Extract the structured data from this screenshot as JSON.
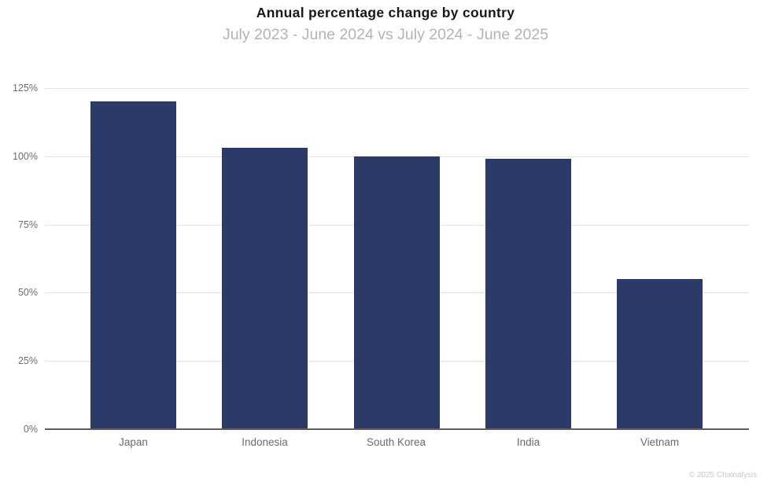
{
  "footer": "© 2025 Chainalysis",
  "colors": {
    "bar": "#2b3a67",
    "gridline": "#e4e4e4",
    "baseline": "#5f5f5f",
    "title_text": "#181818",
    "subtitle_text": "#b4b4b4",
    "axis_label_text": "#6b6b6b",
    "credit_text": "#c9c9c9"
  },
  "chart_data": {
    "type": "bar",
    "title": "Annual percentage change by country",
    "subtitle": "July 2023 - June 2024 vs July 2024 - June 2025",
    "categories": [
      "Japan",
      "Indonesia",
      "South Korea",
      "India",
      "Vietnam"
    ],
    "values": [
      120,
      103,
      100,
      99,
      55
    ],
    "xlabel": "",
    "ylabel": "",
    "ylim": [
      0,
      125
    ],
    "ytick_step": 25,
    "ytick_labels": [
      "0%",
      "25%",
      "50%",
      "75%",
      "100%",
      "125%"
    ],
    "grid": true,
    "legend": "none",
    "bar_color": "#2b3a67"
  }
}
